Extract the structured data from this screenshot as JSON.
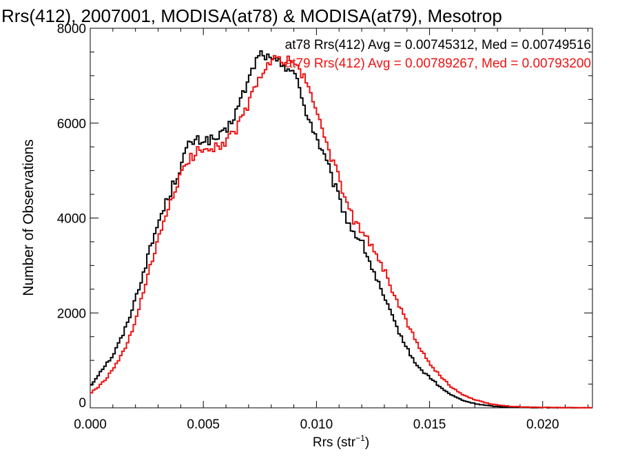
{
  "chart_data": {
    "type": "line",
    "title": "Rrs(412), 2007001, MODISA(at78) & MODISA(at79), Mesotrop",
    "xlabel": "Rrs (str",
    "xlabel_sup": "−1",
    "xlabel_end": ")",
    "ylabel": "Number of Observations",
    "xlim": [
      0.0,
      0.0222
    ],
    "ylim": [
      0,
      8000
    ],
    "xticks": [
      0.0,
      0.005,
      0.01,
      0.015,
      0.02
    ],
    "xtick_labels": [
      "0.000",
      "0.005",
      "0.010",
      "0.015",
      "0.020"
    ],
    "yticks": [
      0,
      2000,
      4000,
      6000,
      8000
    ],
    "ytick_labels": [
      "0",
      "2000",
      "4000",
      "6000",
      "8000"
    ],
    "grid": false,
    "legend_position": "top-right",
    "annotations": [
      "at78 Rrs(412) Avg = 0.00745312, Med = 0.00749516",
      "at79 Rrs(412) Avg = 0.00789267, Med = 0.00793200"
    ],
    "series": [
      {
        "name": "at78",
        "color": "#000000",
        "x": [
          0.0,
          0.0005,
          0.001,
          0.0015,
          0.002,
          0.0025,
          0.003,
          0.0035,
          0.004,
          0.0043,
          0.0045,
          0.005,
          0.0055,
          0.006,
          0.0065,
          0.007,
          0.0073,
          0.0076,
          0.008,
          0.0085,
          0.009,
          0.0095,
          0.01,
          0.0105,
          0.011,
          0.0115,
          0.012,
          0.0125,
          0.013,
          0.0135,
          0.014,
          0.0145,
          0.015,
          0.0155,
          0.016,
          0.0165,
          0.017,
          0.0175,
          0.018,
          0.019,
          0.02,
          0.021,
          0.022
        ],
        "y": [
          450,
          800,
          1100,
          1600,
          2300,
          3100,
          3900,
          4500,
          5100,
          5500,
          5600,
          5650,
          5650,
          5800,
          6300,
          6900,
          7300,
          7500,
          7300,
          7250,
          7100,
          6300,
          5700,
          5100,
          4400,
          3800,
          3500,
          2900,
          2300,
          1750,
          1250,
          850,
          650,
          420,
          260,
          150,
          90,
          50,
          25,
          10,
          5,
          3,
          0
        ]
      },
      {
        "name": "at79",
        "color": "#ee1111",
        "x": [
          0.0,
          0.0005,
          0.001,
          0.0015,
          0.002,
          0.0025,
          0.003,
          0.0035,
          0.004,
          0.0045,
          0.005,
          0.0055,
          0.006,
          0.0065,
          0.007,
          0.0075,
          0.008,
          0.0085,
          0.009,
          0.0095,
          0.01,
          0.0105,
          0.011,
          0.0115,
          0.012,
          0.0125,
          0.013,
          0.0135,
          0.014,
          0.0145,
          0.015,
          0.0155,
          0.016,
          0.0165,
          0.017,
          0.0175,
          0.018,
          0.0185,
          0.019,
          0.02,
          0.021,
          0.022
        ],
        "y": [
          300,
          500,
          800,
          1200,
          1800,
          2700,
          3500,
          4300,
          4900,
          5300,
          5500,
          5500,
          5600,
          5900,
          6400,
          7000,
          7300,
          7350,
          7300,
          6900,
          6300,
          5500,
          4800,
          4100,
          3700,
          3400,
          2900,
          2300,
          1800,
          1300,
          950,
          650,
          430,
          270,
          170,
          100,
          60,
          35,
          20,
          8,
          4,
          0
        ]
      }
    ]
  }
}
